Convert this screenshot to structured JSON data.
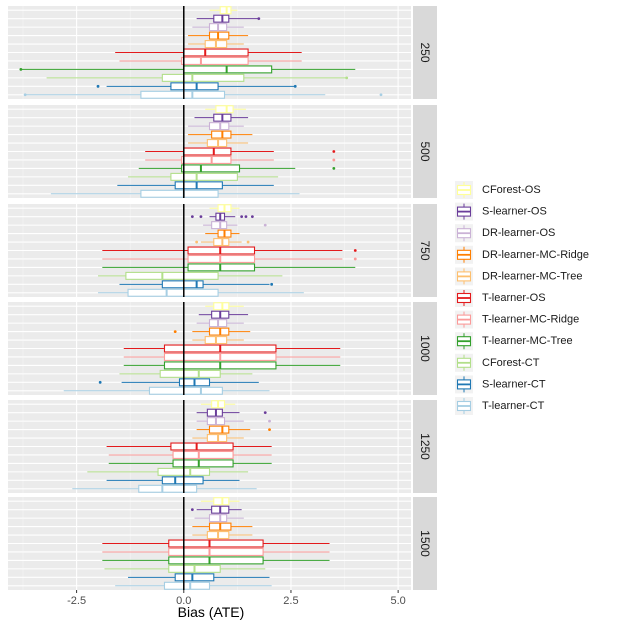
{
  "chart_data": {
    "type": "boxplot",
    "title": "",
    "xlabel": "Bias (ATE)",
    "ylabel": "",
    "xlim": [
      -4.1,
      5.3
    ],
    "xticks": [
      -2.5,
      0.0,
      2.5,
      5.0
    ],
    "xtick_labels": [
      "-2.5",
      "0.0",
      "2.5",
      "5.0"
    ],
    "reference_line": 0,
    "facet_by": "sample size",
    "facets": [
      "250",
      "500",
      "750",
      "1000",
      "1250",
      "1500"
    ],
    "series": [
      {
        "name": "CForest-OS",
        "color": "#ffff99"
      },
      {
        "name": "S-learner-OS",
        "color": "#6a3d9a"
      },
      {
        "name": "DR-learner-OS",
        "color": "#cab2d6"
      },
      {
        "name": "DR-learner-MC-Ridge",
        "color": "#ff7f00"
      },
      {
        "name": "DR-learner-MC-Tree",
        "color": "#fdbf6f"
      },
      {
        "name": "T-learner-OS",
        "color": "#e31a1c"
      },
      {
        "name": "T-learner-MC-Ridge",
        "color": "#fb9a99"
      },
      {
        "name": "T-learner-MC-Tree",
        "color": "#33a02c"
      },
      {
        "name": "CForest-CT",
        "color": "#b2df8a"
      },
      {
        "name": "S-learner-CT",
        "color": "#1f78b4"
      },
      {
        "name": "T-learner-CT",
        "color": "#a6cee3"
      }
    ],
    "boxes": {
      "250": [
        [
          0.6,
          0.85,
          1.0,
          1.1,
          1.25,
          []
        ],
        [
          0.3,
          0.7,
          0.9,
          1.05,
          1.75,
          [
            1.75
          ]
        ],
        [
          0.2,
          0.6,
          0.8,
          1.0,
          1.4,
          []
        ],
        [
          0.1,
          0.6,
          0.8,
          1.05,
          1.5,
          []
        ],
        [
          0.1,
          0.5,
          0.75,
          1.0,
          1.4,
          []
        ],
        [
          -1.6,
          0.0,
          0.5,
          1.5,
          2.75,
          []
        ],
        [
          -1.5,
          -0.05,
          0.4,
          1.5,
          2.75,
          []
        ],
        [
          -3.8,
          0.0,
          1.0,
          2.05,
          4.0,
          [
            -3.8
          ]
        ],
        [
          -3.2,
          -0.5,
          0.2,
          1.4,
          3.8,
          [
            3.8
          ]
        ],
        [
          -1.8,
          -0.3,
          0.3,
          0.8,
          2.6,
          [
            -2.0,
            2.6
          ]
        ],
        [
          -3.7,
          -1.0,
          0.2,
          0.95,
          3.3,
          [
            -3.7,
            4.6
          ]
        ]
      ],
      "500": [
        [
          0.5,
          0.75,
          1.0,
          1.15,
          1.45,
          []
        ],
        [
          0.25,
          0.7,
          0.9,
          1.1,
          1.5,
          []
        ],
        [
          0.1,
          0.6,
          0.85,
          1.05,
          1.4,
          []
        ],
        [
          0.1,
          0.65,
          0.9,
          1.1,
          1.6,
          []
        ],
        [
          0.1,
          0.55,
          0.8,
          1.0,
          1.5,
          []
        ],
        [
          -0.9,
          0.0,
          0.7,
          1.1,
          2.1,
          [
            3.5
          ]
        ],
        [
          -0.9,
          -0.05,
          0.65,
          1.1,
          2.1,
          [
            3.5
          ]
        ],
        [
          -1.05,
          -0.05,
          0.4,
          1.3,
          2.6,
          [
            3.5
          ]
        ],
        [
          -1.3,
          -0.3,
          0.3,
          1.25,
          2.2,
          []
        ],
        [
          -1.55,
          -0.2,
          0.3,
          0.9,
          2.1,
          []
        ],
        [
          -3.1,
          -1.0,
          0.0,
          0.8,
          2.7,
          []
        ]
      ],
      "750": [
        [
          0.6,
          0.8,
          0.95,
          1.1,
          1.3,
          []
        ],
        [
          0.6,
          0.75,
          0.85,
          0.95,
          1.2,
          [
            0.2,
            0.4,
            1.35,
            1.45,
            1.6
          ]
        ],
        [
          0.45,
          0.65,
          0.85,
          1.0,
          1.25,
          [
            1.9
          ]
        ],
        [
          0.5,
          0.8,
          0.95,
          1.1,
          1.3,
          []
        ],
        [
          0.4,
          0.7,
          0.9,
          1.05,
          1.35,
          [
            0.3,
            1.5
          ]
        ],
        [
          -1.9,
          0.1,
          0.85,
          1.65,
          3.7,
          [
            4.0
          ]
        ],
        [
          -1.9,
          0.1,
          0.85,
          1.65,
          3.7,
          [
            4.0
          ]
        ],
        [
          -1.9,
          0.1,
          0.85,
          1.65,
          4.0,
          []
        ],
        [
          -2.0,
          -1.35,
          -0.5,
          0.8,
          2.3,
          []
        ],
        [
          -1.5,
          -0.5,
          0.3,
          0.45,
          2.0,
          [
            2.05
          ]
        ],
        [
          -2.0,
          -1.3,
          -0.4,
          0.8,
          2.8,
          []
        ]
      ],
      "1000": [
        [
          0.5,
          0.7,
          0.9,
          1.05,
          1.4,
          []
        ],
        [
          0.35,
          0.65,
          0.85,
          1.05,
          1.5,
          []
        ],
        [
          0.3,
          0.6,
          0.8,
          1.0,
          1.4,
          []
        ],
        [
          0.2,
          0.6,
          0.85,
          1.05,
          1.55,
          [
            -0.2
          ]
        ],
        [
          0.2,
          0.5,
          0.75,
          1.0,
          1.4,
          []
        ],
        [
          -1.4,
          -0.45,
          0.85,
          2.15,
          3.65,
          []
        ],
        [
          -1.4,
          -0.45,
          0.85,
          2.15,
          3.65,
          []
        ],
        [
          -1.4,
          -0.45,
          0.85,
          2.15,
          3.65,
          []
        ],
        [
          -1.5,
          -0.55,
          0.35,
          0.85,
          1.6,
          []
        ],
        [
          -1.45,
          -0.1,
          0.25,
          0.6,
          1.75,
          [
            -1.95
          ]
        ],
        [
          -2.8,
          -0.8,
          0.4,
          0.9,
          2.0,
          []
        ]
      ],
      "1250": [
        [
          0.4,
          0.65,
          0.8,
          0.95,
          1.2,
          []
        ],
        [
          0.3,
          0.55,
          0.75,
          0.9,
          1.3,
          [
            1.9
          ]
        ],
        [
          0.3,
          0.55,
          0.75,
          0.95,
          1.4,
          [
            2.0
          ]
        ],
        [
          0.3,
          0.6,
          0.9,
          1.05,
          1.55,
          [
            2.0
          ]
        ],
        [
          0.2,
          0.55,
          0.8,
          1.0,
          1.4,
          []
        ],
        [
          -1.8,
          -0.3,
          0.3,
          1.15,
          2.05,
          []
        ],
        [
          -1.75,
          -0.25,
          0.35,
          1.15,
          2.05,
          []
        ],
        [
          -1.75,
          -0.25,
          0.35,
          1.15,
          2.05,
          []
        ],
        [
          -2.25,
          -0.6,
          0.15,
          0.6,
          1.5,
          []
        ],
        [
          -1.8,
          -0.5,
          -0.2,
          0.45,
          1.3,
          []
        ],
        [
          -2.6,
          -1.05,
          -0.5,
          0.3,
          1.7,
          []
        ]
      ],
      "1500": [
        [
          0.4,
          0.7,
          0.9,
          1.05,
          1.3,
          []
        ],
        [
          0.3,
          0.65,
          0.85,
          1.05,
          1.35,
          [
            0.2
          ]
        ],
        [
          0.25,
          0.6,
          0.85,
          1.0,
          1.4,
          []
        ],
        [
          0.2,
          0.6,
          0.85,
          1.1,
          1.6,
          []
        ],
        [
          0.2,
          0.55,
          0.8,
          1.05,
          1.6,
          []
        ],
        [
          -1.9,
          -0.35,
          0.6,
          1.85,
          3.4,
          []
        ],
        [
          -1.9,
          -0.35,
          0.6,
          1.85,
          3.4,
          []
        ],
        [
          -1.9,
          -0.35,
          0.6,
          1.85,
          3.4,
          []
        ],
        [
          -1.85,
          -0.35,
          0.25,
          0.85,
          1.9,
          []
        ],
        [
          -1.3,
          -0.2,
          0.2,
          0.7,
          2.0,
          []
        ],
        [
          -1.6,
          -0.45,
          0.15,
          0.6,
          2.05,
          []
        ]
      ]
    }
  }
}
